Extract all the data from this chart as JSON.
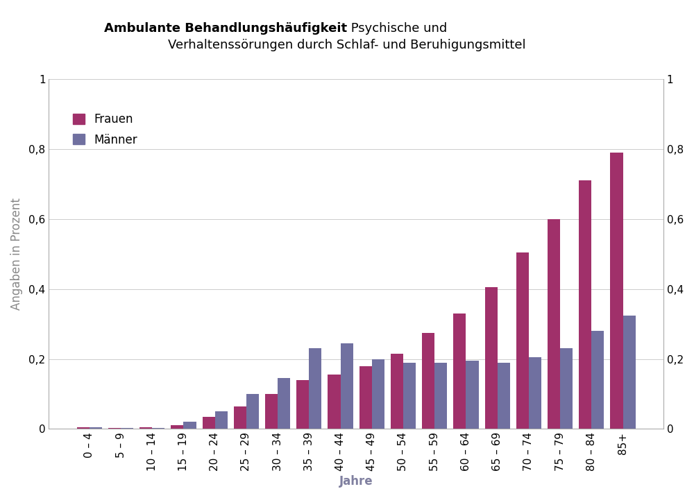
{
  "title_bold": "Ambulante Behandlungshäufigkeit",
  "title_normal": " Psychische und\nVerhaltenssörungen durch Schlaf- und Beruhigungsmittel",
  "title_normal2": "Verhaltenssörungen durch Schlaf- und Beruhigungsmittel",
  "ylabel": "Angaben in Prozent",
  "xlabel": "Jahre",
  "categories": [
    "0 – 4",
    "5 – 9",
    "10 – 14",
    "15 – 19",
    "20 – 24",
    "25 – 29",
    "30 – 34",
    "35 – 39",
    "40 – 44",
    "45 – 49",
    "50 – 54",
    "55 – 59",
    "60 – 64",
    "65 – 69",
    "70 – 74",
    "75 – 79",
    "80 – 84",
    "85+"
  ],
  "frauen": [
    0.005,
    0.003,
    0.005,
    0.01,
    0.035,
    0.065,
    0.1,
    0.14,
    0.155,
    0.18,
    0.215,
    0.275,
    0.33,
    0.405,
    0.505,
    0.6,
    0.71,
    0.79
  ],
  "maenner": [
    0.005,
    0.003,
    0.003,
    0.02,
    0.05,
    0.1,
    0.145,
    0.23,
    0.245,
    0.2,
    0.19,
    0.19,
    0.195,
    0.19,
    0.205,
    0.23,
    0.28,
    0.325
  ],
  "color_frauen": "#A0306A",
  "color_maenner": "#7070A0",
  "ylim": [
    0,
    1.0
  ],
  "yticks": [
    0,
    0.2,
    0.4,
    0.6,
    0.8,
    1.0
  ],
  "ytick_labels": [
    "0",
    "0,2",
    "0,4",
    "0,6",
    "0,8",
    "1"
  ],
  "legend_frauen": "Frauen",
  "legend_maenner": "Männer",
  "background_color": "#ffffff",
  "title_fontsize": 13,
  "label_fontsize": 12,
  "tick_fontsize": 11
}
